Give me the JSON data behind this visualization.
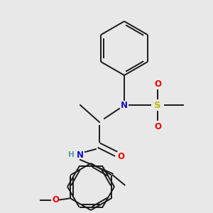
{
  "background_color": "#e8e8e8",
  "bond_color": "#1a1a1a",
  "colors": {
    "N": "#1010cc",
    "O": "#ee0000",
    "S": "#bbbb00",
    "C": "#1a1a1a",
    "H_label": "#5a9a9a"
  },
  "figsize": [
    3.0,
    3.0
  ],
  "dpi": 100
}
